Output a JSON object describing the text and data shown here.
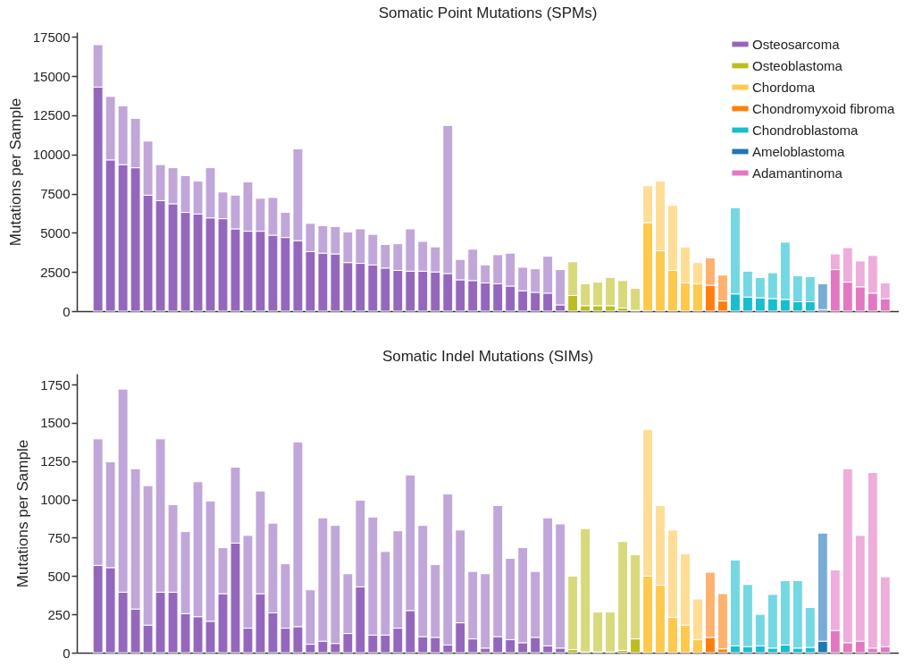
{
  "chart_data": [
    {
      "type": "bar",
      "title": "Somatic Point Mutations (SPMs)",
      "ylabel": "Mutations per Sample",
      "stacked": true,
      "legend": "top right",
      "tick_labels": "y",
      "categories": [
        null,
        null,
        null,
        null,
        null,
        null,
        null,
        null,
        null,
        null,
        null,
        null,
        null,
        null,
        null,
        null,
        null,
        null,
        null,
        null,
        null,
        null,
        null,
        null,
        null,
        null,
        null,
        null,
        null,
        null,
        null,
        null,
        null,
        null,
        null,
        null,
        null,
        null,
        null,
        null,
        null,
        null,
        null,
        null,
        null,
        null,
        null,
        null,
        null,
        null,
        null,
        null,
        null,
        null,
        null,
        null,
        null,
        null,
        null,
        null,
        null,
        null,
        null,
        null
      ],
      "ylim": [
        0,
        17800
      ],
      "yticks": [
        0,
        2500,
        5000,
        7500,
        10000,
        12500,
        15000,
        17500
      ],
      "series": [
        {
          "name": "Osteosarcoma",
          "color": "#9467bd",
          "values": [
            14300,
            9650,
            9350,
            9150,
            7400,
            7050,
            6850,
            6300,
            6200,
            5950,
            5900,
            5250,
            5100,
            5100,
            4850,
            4700,
            4500,
            3800,
            3700,
            3650,
            3100,
            3050,
            2950,
            2750,
            2600,
            2550,
            2550,
            2500,
            2400,
            2000,
            1950,
            1800,
            1750,
            1600,
            1300,
            1200,
            1150,
            400,
            null,
            null,
            null,
            null,
            null,
            null,
            null,
            null,
            null,
            null,
            null,
            null,
            null,
            null,
            null,
            null,
            null,
            null,
            null,
            null,
            null,
            null,
            null,
            null,
            null,
            null
          ]
        },
        {
          "name": "Osteoblastoma",
          "color": "#bcbd22",
          "values": [
            null,
            null,
            null,
            null,
            null,
            null,
            null,
            null,
            null,
            null,
            null,
            null,
            null,
            null,
            null,
            null,
            null,
            null,
            null,
            null,
            null,
            null,
            null,
            null,
            null,
            null,
            null,
            null,
            null,
            null,
            null,
            null,
            null,
            null,
            null,
            null,
            null,
            null,
            1000,
            350,
            350,
            350,
            200,
            50,
            null,
            null,
            null,
            null,
            null,
            null,
            null,
            null,
            null,
            null,
            null,
            null,
            null,
            null,
            null,
            null,
            null,
            null,
            null,
            null
          ]
        },
        {
          "name": "Chordoma",
          "color": "#ffc94d",
          "values": [
            null,
            null,
            null,
            null,
            null,
            null,
            null,
            null,
            null,
            null,
            null,
            null,
            null,
            null,
            null,
            null,
            null,
            null,
            null,
            null,
            null,
            null,
            null,
            null,
            null,
            null,
            null,
            null,
            null,
            null,
            null,
            null,
            null,
            null,
            null,
            null,
            null,
            null,
            null,
            null,
            null,
            null,
            null,
            null,
            5650,
            3850,
            2600,
            1800,
            1750,
            null,
            null,
            null,
            null,
            null,
            null,
            null,
            null,
            null,
            null,
            null,
            null,
            null,
            null,
            null
          ]
        },
        {
          "name": "Chondromyxoid fibroma",
          "color": "#ff7f0e",
          "values": [
            null,
            null,
            null,
            null,
            null,
            null,
            null,
            null,
            null,
            null,
            null,
            null,
            null,
            null,
            null,
            null,
            null,
            null,
            null,
            null,
            null,
            null,
            null,
            null,
            null,
            null,
            null,
            null,
            null,
            null,
            null,
            null,
            null,
            null,
            null,
            null,
            null,
            null,
            null,
            null,
            null,
            null,
            null,
            null,
            null,
            null,
            null,
            null,
            null,
            1650,
            650,
            null,
            null,
            null,
            null,
            null,
            null,
            null,
            null,
            null,
            null,
            null,
            null,
            null
          ]
        },
        {
          "name": "Chondroblastoma",
          "color": "#17becf",
          "values": [
            null,
            null,
            null,
            null,
            null,
            null,
            null,
            null,
            null,
            null,
            null,
            null,
            null,
            null,
            null,
            null,
            null,
            null,
            null,
            null,
            null,
            null,
            null,
            null,
            null,
            null,
            null,
            null,
            null,
            null,
            null,
            null,
            null,
            null,
            null,
            null,
            null,
            null,
            null,
            null,
            null,
            null,
            null,
            null,
            null,
            null,
            null,
            null,
            null,
            null,
            null,
            1100,
            900,
            850,
            800,
            750,
            600,
            600,
            null,
            null,
            null,
            null,
            null,
            null
          ]
        },
        {
          "name": "Ameloblastoma",
          "color": "#1f77b4",
          "values": [
            null,
            null,
            null,
            null,
            null,
            null,
            null,
            null,
            null,
            null,
            null,
            null,
            null,
            null,
            null,
            null,
            null,
            null,
            null,
            null,
            null,
            null,
            null,
            null,
            null,
            null,
            null,
            null,
            null,
            null,
            null,
            null,
            null,
            null,
            null,
            null,
            null,
            null,
            null,
            null,
            null,
            null,
            null,
            null,
            null,
            null,
            null,
            null,
            null,
            null,
            null,
            null,
            null,
            null,
            null,
            null,
            null,
            null,
            100,
            null,
            null,
            null,
            null,
            null
          ]
        },
        {
          "name": "Adamantinoma",
          "color": "#e377c2",
          "values": [
            null,
            null,
            null,
            null,
            null,
            null,
            null,
            null,
            null,
            null,
            null,
            null,
            null,
            null,
            null,
            null,
            null,
            null,
            null,
            null,
            null,
            null,
            null,
            null,
            null,
            null,
            null,
            null,
            null,
            null,
            null,
            null,
            null,
            null,
            null,
            null,
            null,
            null,
            null,
            null,
            null,
            null,
            null,
            null,
            null,
            null,
            null,
            null,
            null,
            null,
            null,
            null,
            null,
            null,
            null,
            null,
            null,
            null,
            null,
            2650,
            1850,
            1550,
            1150,
            800
          ]
        },
        {
          "color": "#c0a6d9",
          "values": [
            2700,
            4050,
            3750,
            3150,
            3450,
            2300,
            2300,
            2350,
            2100,
            3200,
            1700,
            2150,
            3150,
            2100,
            2400,
            1600,
            5850,
            1800,
            1750,
            1750,
            1950,
            2200,
            1950,
            1500,
            1700,
            2700,
            1900,
            1600,
            9450,
            1300,
            2000,
            1150,
            1850,
            2100,
            1500,
            1500,
            2350,
            2250,
            null,
            null,
            null,
            null,
            null,
            null,
            null,
            null,
            null,
            null,
            null,
            null,
            null,
            null,
            null,
            null,
            null,
            null,
            null,
            null,
            null,
            null,
            null,
            null,
            null,
            null
          ]
        },
        {
          "color": "#d8d97b",
          "values": [
            null,
            null,
            null,
            null,
            null,
            null,
            null,
            null,
            null,
            null,
            null,
            null,
            null,
            null,
            null,
            null,
            null,
            null,
            null,
            null,
            null,
            null,
            null,
            null,
            null,
            null,
            null,
            null,
            null,
            null,
            null,
            null,
            null,
            null,
            null,
            null,
            null,
            null,
            2150,
            1400,
            1500,
            1800,
            1750,
            1400,
            null,
            null,
            null,
            null,
            null,
            null,
            null,
            null,
            null,
            null,
            null,
            null,
            null,
            null,
            null,
            null,
            null,
            null,
            null,
            null
          ]
        },
        {
          "color": "#ffdd95",
          "values": [
            null,
            null,
            null,
            null,
            null,
            null,
            null,
            null,
            null,
            null,
            null,
            null,
            null,
            null,
            null,
            null,
            null,
            null,
            null,
            null,
            null,
            null,
            null,
            null,
            null,
            null,
            null,
            null,
            null,
            null,
            null,
            null,
            null,
            null,
            null,
            null,
            null,
            null,
            null,
            null,
            null,
            null,
            null,
            null,
            2350,
            4450,
            4150,
            2300,
            1350,
            null,
            null,
            null,
            null,
            null,
            null,
            null,
            null,
            null,
            null,
            null,
            null,
            null,
            null,
            null
          ]
        },
        {
          "color": "#ffb26e",
          "values": [
            null,
            null,
            null,
            null,
            null,
            null,
            null,
            null,
            null,
            null,
            null,
            null,
            null,
            null,
            null,
            null,
            null,
            null,
            null,
            null,
            null,
            null,
            null,
            null,
            null,
            null,
            null,
            null,
            null,
            null,
            null,
            null,
            null,
            null,
            null,
            null,
            null,
            null,
            null,
            null,
            null,
            null,
            null,
            null,
            null,
            null,
            null,
            null,
            null,
            1750,
            1650,
            null,
            null,
            null,
            null,
            null,
            null,
            null,
            null,
            null,
            null,
            null,
            null,
            null
          ]
        },
        {
          "color": "#74d8e3",
          "values": [
            null,
            null,
            null,
            null,
            null,
            null,
            null,
            null,
            null,
            null,
            null,
            null,
            null,
            null,
            null,
            null,
            null,
            null,
            null,
            null,
            null,
            null,
            null,
            null,
            null,
            null,
            null,
            null,
            null,
            null,
            null,
            null,
            null,
            null,
            null,
            null,
            null,
            null,
            null,
            null,
            null,
            null,
            null,
            null,
            null,
            null,
            null,
            null,
            null,
            null,
            null,
            5500,
            1650,
            1300,
            1650,
            3650,
            1650,
            1600,
            null,
            null,
            null,
            null,
            null,
            null
          ]
        },
        {
          "color": "#79acd2",
          "values": [
            null,
            null,
            null,
            null,
            null,
            null,
            null,
            null,
            null,
            null,
            null,
            null,
            null,
            null,
            null,
            null,
            null,
            null,
            null,
            null,
            null,
            null,
            null,
            null,
            null,
            null,
            null,
            null,
            null,
            null,
            null,
            null,
            null,
            null,
            null,
            null,
            null,
            null,
            null,
            null,
            null,
            null,
            null,
            null,
            null,
            null,
            null,
            null,
            null,
            null,
            null,
            null,
            null,
            null,
            null,
            null,
            null,
            null,
            1650,
            null,
            null,
            null,
            null,
            null
          ]
        },
        {
          "color": "#eeaddb",
          "values": [
            null,
            null,
            null,
            null,
            null,
            null,
            null,
            null,
            null,
            null,
            null,
            null,
            null,
            null,
            null,
            null,
            null,
            null,
            null,
            null,
            null,
            null,
            null,
            null,
            null,
            null,
            null,
            null,
            null,
            null,
            null,
            null,
            null,
            null,
            null,
            null,
            null,
            null,
            null,
            null,
            null,
            null,
            null,
            null,
            null,
            null,
            null,
            null,
            null,
            null,
            null,
            null,
            null,
            null,
            null,
            null,
            null,
            null,
            null,
            1000,
            2200,
            1650,
            2400,
            1000
          ]
        }
      ]
    },
    {
      "type": "bar",
      "title": "Somatic Indel Mutations (SIMs)",
      "ylabel": "Mutations per Sample",
      "stacked": true,
      "tick_labels": "y",
      "categories": [
        null,
        null,
        null,
        null,
        null,
        null,
        null,
        null,
        null,
        null,
        null,
        null,
        null,
        null,
        null,
        null,
        null,
        null,
        null,
        null,
        null,
        null,
        null,
        null,
        null,
        null,
        null,
        null,
        null,
        null,
        null,
        null,
        null,
        null,
        null,
        null,
        null,
        null,
        null,
        null,
        null,
        null,
        null,
        null,
        null,
        null,
        null,
        null,
        null,
        null,
        null,
        null,
        null,
        null,
        null,
        null,
        null,
        null,
        null,
        null,
        null,
        null,
        null,
        null
      ],
      "ylim": [
        0,
        1820
      ],
      "yticks": [
        0,
        250,
        500,
        750,
        1000,
        1250,
        1500,
        1750
      ],
      "series": [
        {
          "color": "#9467bd",
          "values": [
            570,
            555,
            395,
            285,
            180,
            395,
            395,
            255,
            235,
            205,
            385,
            715,
            160,
            385,
            260,
            160,
            170,
            55,
            75,
            60,
            125,
            430,
            115,
            115,
            160,
            275,
            105,
            100,
            50,
            195,
            90,
            30,
            105,
            85,
            65,
            100,
            45,
            30,
            null,
            null,
            null,
            null,
            null,
            null,
            null,
            null,
            null,
            null,
            null,
            null,
            null,
            null,
            null,
            null,
            null,
            null,
            null,
            null,
            null,
            null,
            null,
            null,
            null,
            null
          ]
        },
        {
          "color": "#bcbd22",
          "values": [
            null,
            null,
            null,
            null,
            null,
            null,
            null,
            null,
            null,
            null,
            null,
            null,
            null,
            null,
            null,
            null,
            null,
            null,
            null,
            null,
            null,
            null,
            null,
            null,
            null,
            null,
            null,
            null,
            null,
            null,
            null,
            null,
            null,
            null,
            null,
            null,
            null,
            null,
            20,
            5,
            5,
            5,
            15,
            90,
            null,
            null,
            null,
            null,
            null,
            null,
            null,
            null,
            null,
            null,
            null,
            null,
            null,
            null,
            null,
            null,
            null,
            null,
            null,
            null
          ]
        },
        {
          "color": "#ffc94d",
          "values": [
            null,
            null,
            null,
            null,
            null,
            null,
            null,
            null,
            null,
            null,
            null,
            null,
            null,
            null,
            null,
            null,
            null,
            null,
            null,
            null,
            null,
            null,
            null,
            null,
            null,
            null,
            null,
            null,
            null,
            null,
            null,
            null,
            null,
            null,
            null,
            null,
            null,
            null,
            null,
            null,
            null,
            null,
            null,
            null,
            500,
            440,
            230,
            180,
            85,
            null,
            null,
            null,
            null,
            null,
            null,
            null,
            null,
            null,
            null,
            null,
            null,
            null,
            null,
            null
          ]
        },
        {
          "color": "#ff7f0e",
          "values": [
            null,
            null,
            null,
            null,
            null,
            null,
            null,
            null,
            null,
            null,
            null,
            null,
            null,
            null,
            null,
            null,
            null,
            null,
            null,
            null,
            null,
            null,
            null,
            null,
            null,
            null,
            null,
            null,
            null,
            null,
            null,
            null,
            null,
            null,
            null,
            null,
            null,
            null,
            null,
            null,
            null,
            null,
            null,
            null,
            null,
            null,
            null,
            null,
            null,
            100,
            25,
            null,
            null,
            null,
            null,
            null,
            null,
            null,
            null,
            null,
            null,
            null,
            null,
            null
          ]
        },
        {
          "color": "#17becf",
          "values": [
            null,
            null,
            null,
            null,
            null,
            null,
            null,
            null,
            null,
            null,
            null,
            null,
            null,
            null,
            null,
            null,
            null,
            null,
            null,
            null,
            null,
            null,
            null,
            null,
            null,
            null,
            null,
            null,
            null,
            null,
            null,
            null,
            null,
            null,
            null,
            null,
            null,
            null,
            null,
            null,
            null,
            null,
            null,
            null,
            null,
            null,
            null,
            null,
            null,
            null,
            null,
            45,
            40,
            45,
            30,
            50,
            30,
            35,
            null,
            null,
            null,
            null,
            null,
            null
          ]
        },
        {
          "color": "#1f77b4",
          "values": [
            null,
            null,
            null,
            null,
            null,
            null,
            null,
            null,
            null,
            null,
            null,
            null,
            null,
            null,
            null,
            null,
            null,
            null,
            null,
            null,
            null,
            null,
            null,
            null,
            null,
            null,
            null,
            null,
            null,
            null,
            null,
            null,
            null,
            null,
            null,
            null,
            null,
            null,
            null,
            null,
            null,
            null,
            null,
            null,
            null,
            null,
            null,
            null,
            null,
            null,
            null,
            null,
            null,
            null,
            null,
            null,
            null,
            null,
            75,
            null,
            null,
            null,
            null,
            null
          ]
        },
        {
          "color": "#e377c2",
          "values": [
            null,
            null,
            null,
            null,
            null,
            null,
            null,
            null,
            null,
            null,
            null,
            null,
            null,
            null,
            null,
            null,
            null,
            null,
            null,
            null,
            null,
            null,
            null,
            null,
            null,
            null,
            null,
            null,
            null,
            null,
            null,
            null,
            null,
            null,
            null,
            null,
            null,
            null,
            null,
            null,
            null,
            null,
            null,
            null,
            null,
            null,
            null,
            null,
            null,
            null,
            null,
            null,
            null,
            null,
            null,
            null,
            null,
            null,
            null,
            145,
            65,
            75,
            30,
            40
          ]
        },
        {
          "color": "#c0a6d9",
          "values": [
            825,
            690,
            1325,
            915,
            910,
            1000,
            570,
            535,
            880,
            785,
            300,
            495,
            605,
            670,
            585,
            420,
            1205,
            355,
            805,
            770,
            390,
            565,
            770,
            545,
            635,
            885,
            725,
            475,
            985,
            605,
            440,
            485,
            855,
            530,
            620,
            430,
            835,
            810,
            null,
            null,
            null,
            null,
            null,
            null,
            null,
            null,
            null,
            null,
            null,
            null,
            null,
            null,
            null,
            null,
            null,
            null,
            null,
            null,
            null,
            null,
            null,
            null,
            null,
            null
          ]
        },
        {
          "color": "#d8d97b",
          "values": [
            null,
            null,
            null,
            null,
            null,
            null,
            null,
            null,
            null,
            null,
            null,
            null,
            null,
            null,
            null,
            null,
            null,
            null,
            null,
            null,
            null,
            null,
            null,
            null,
            null,
            null,
            null,
            null,
            null,
            null,
            null,
            null,
            null,
            null,
            null,
            null,
            null,
            null,
            480,
            805,
            260,
            260,
            710,
            550,
            null,
            null,
            null,
            null,
            null,
            null,
            null,
            null,
            null,
            null,
            null,
            null,
            null,
            null,
            null,
            null,
            null,
            null,
            null,
            null
          ]
        },
        {
          "color": "#ffdd95",
          "values": [
            null,
            null,
            null,
            null,
            null,
            null,
            null,
            null,
            null,
            null,
            null,
            null,
            null,
            null,
            null,
            null,
            null,
            null,
            null,
            null,
            null,
            null,
            null,
            null,
            null,
            null,
            null,
            null,
            null,
            null,
            null,
            null,
            null,
            null,
            null,
            null,
            null,
            null,
            null,
            null,
            null,
            null,
            null,
            null,
            955,
            520,
            570,
            465,
            265,
            null,
            null,
            null,
            null,
            null,
            null,
            null,
            null,
            null,
            null,
            null,
            null,
            null,
            null,
            null
          ]
        },
        {
          "color": "#ffb26e",
          "values": [
            null,
            null,
            null,
            null,
            null,
            null,
            null,
            null,
            null,
            null,
            null,
            null,
            null,
            null,
            null,
            null,
            null,
            null,
            null,
            null,
            null,
            null,
            null,
            null,
            null,
            null,
            null,
            null,
            null,
            null,
            null,
            null,
            null,
            null,
            null,
            null,
            null,
            null,
            null,
            null,
            null,
            null,
            null,
            null,
            null,
            null,
            null,
            null,
            null,
            425,
            360,
            null,
            null,
            null,
            null,
            null,
            null,
            null,
            null,
            null,
            null,
            null,
            null,
            null
          ]
        },
        {
          "color": "#74d8e3",
          "values": [
            null,
            null,
            null,
            null,
            null,
            null,
            null,
            null,
            null,
            null,
            null,
            null,
            null,
            null,
            null,
            null,
            null,
            null,
            null,
            null,
            null,
            null,
            null,
            null,
            null,
            null,
            null,
            null,
            null,
            null,
            null,
            null,
            null,
            null,
            null,
            null,
            null,
            null,
            null,
            null,
            null,
            null,
            null,
            null,
            null,
            null,
            null,
            null,
            null,
            null,
            null,
            560,
            405,
            205,
            350,
            420,
            440,
            260,
            null,
            null,
            null,
            null,
            null,
            null
          ]
        },
        {
          "color": "#79acd2",
          "values": [
            null,
            null,
            null,
            null,
            null,
            null,
            null,
            null,
            null,
            null,
            null,
            null,
            null,
            null,
            null,
            null,
            null,
            null,
            null,
            null,
            null,
            null,
            null,
            null,
            null,
            null,
            null,
            null,
            null,
            null,
            null,
            null,
            null,
            null,
            null,
            null,
            null,
            null,
            null,
            null,
            null,
            null,
            null,
            null,
            null,
            null,
            null,
            null,
            null,
            null,
            null,
            null,
            null,
            null,
            null,
            null,
            null,
            null,
            705,
            null,
            null,
            null,
            null,
            null
          ]
        },
        {
          "color": "#eeaddb",
          "values": [
            null,
            null,
            null,
            null,
            null,
            null,
            null,
            null,
            null,
            null,
            null,
            null,
            null,
            null,
            null,
            null,
            null,
            null,
            null,
            null,
            null,
            null,
            null,
            null,
            null,
            null,
            null,
            null,
            null,
            null,
            null,
            null,
            null,
            null,
            null,
            null,
            null,
            null,
            null,
            null,
            null,
            null,
            null,
            null,
            null,
            null,
            null,
            null,
            null,
            null,
            null,
            null,
            null,
            null,
            null,
            null,
            null,
            null,
            null,
            395,
            1135,
            690,
            1145,
            455
          ]
        }
      ]
    }
  ]
}
